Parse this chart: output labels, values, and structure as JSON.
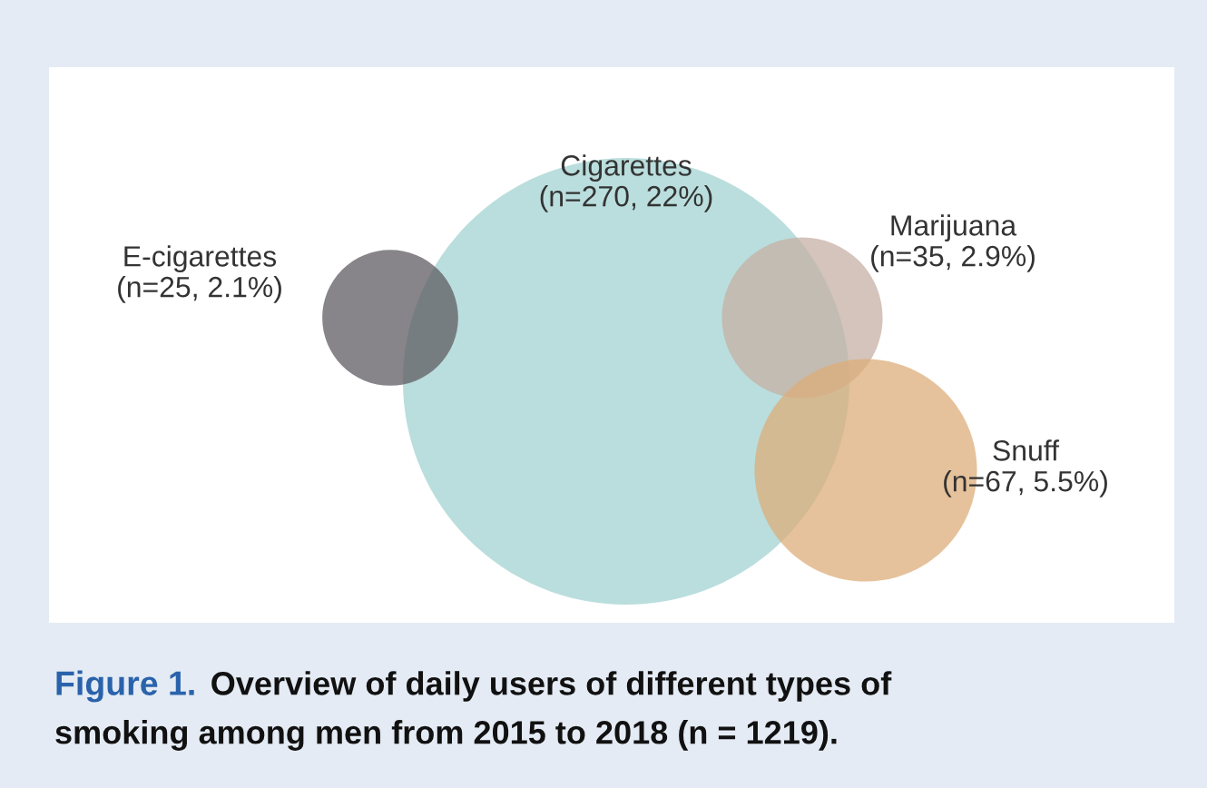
{
  "chart_data": {
    "type": "other",
    "categories": [
      "Cigarettes",
      "E-cigarettes",
      "Marijuana",
      "Snuff"
    ],
    "values": [
      270,
      25,
      35,
      67
    ],
    "value_labels": [
      "(n=270, 22%)",
      "(n=25, 2.1%)",
      "(n=35, 2.9%)",
      "(n=67, 5.5%)"
    ],
    "colors": [
      "#a3d3d2",
      "#5f5c61",
      "#c5b0a4",
      "#dcae7a"
    ],
    "annotations": [
      "Figure 1.",
      "Overview of daily users of different types of",
      "smoking among men from 2015 to 2018 (n = 1219)."
    ]
  }
}
